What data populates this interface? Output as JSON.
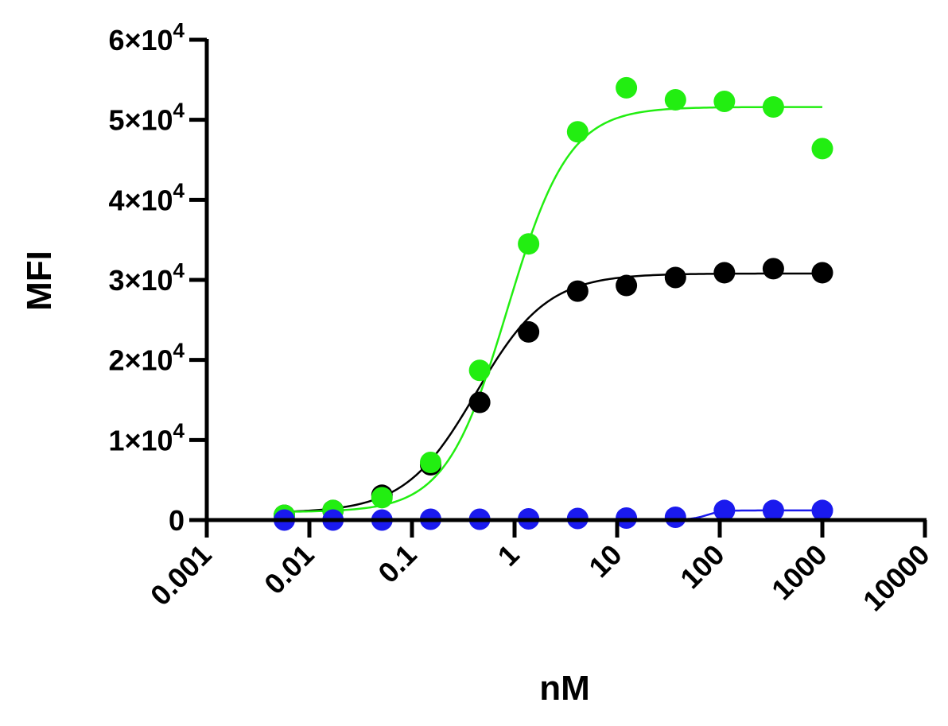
{
  "chart_data": {
    "type": "scatter",
    "xlabel": "nM",
    "ylabel": "MFI",
    "x_scale": "log",
    "xlim": [
      0.001,
      10000
    ],
    "ylim": [
      0,
      60000
    ],
    "grid": false,
    "legend": "none",
    "x_ticks": [
      {
        "value": 0.001,
        "label": "0.001"
      },
      {
        "value": 0.01,
        "label": "0.01"
      },
      {
        "value": 0.1,
        "label": "0.1"
      },
      {
        "value": 1,
        "label": "1"
      },
      {
        "value": 10,
        "label": "10"
      },
      {
        "value": 100,
        "label": "100"
      },
      {
        "value": 1000,
        "label": "1000"
      },
      {
        "value": 10000,
        "label": "10000"
      }
    ],
    "y_ticks": [
      {
        "value": 0,
        "mantissa": "0",
        "exponent": ""
      },
      {
        "value": 10000,
        "mantissa": "1×10",
        "exponent": "4"
      },
      {
        "value": 20000,
        "mantissa": "2×10",
        "exponent": "4"
      },
      {
        "value": 30000,
        "mantissa": "3×10",
        "exponent": "4"
      },
      {
        "value": 40000,
        "mantissa": "4×10",
        "exponent": "4"
      },
      {
        "value": 50000,
        "mantissa": "5×10",
        "exponent": "4"
      },
      {
        "value": 60000,
        "mantissa": "6×10",
        "exponent": "4"
      }
    ],
    "x": [
      0.0057,
      0.017,
      0.051,
      0.152,
      0.457,
      1.37,
      4.12,
      12.3,
      37.0,
      111,
      333,
      1000
    ],
    "series": [
      {
        "color": "#000000",
        "values": [
          600,
          1200,
          3100,
          6900,
          14700,
          23500,
          28600,
          29300,
          30300,
          30900,
          31400,
          30900
        ],
        "fit": {
          "bottom": 900,
          "top": 30800,
          "ec50": 0.42,
          "hill": 1.25
        }
      },
      {
        "color": "#22ee11",
        "values": [
          600,
          1200,
          2800,
          7200,
          18700,
          34500,
          48500,
          54000,
          52500,
          52300,
          51600,
          46400
        ],
        "fit": {
          "bottom": 1000,
          "top": 51600,
          "ec50": 0.85,
          "hill": 1.45
        }
      },
      {
        "color": "#1a1aee",
        "values": [
          0,
          0,
          0,
          100,
          100,
          150,
          200,
          250,
          350,
          1200,
          1200,
          1200
        ],
        "fit": {
          "bottom": 50,
          "top": 1200,
          "ec50": 75,
          "hill": 6
        }
      }
    ]
  }
}
